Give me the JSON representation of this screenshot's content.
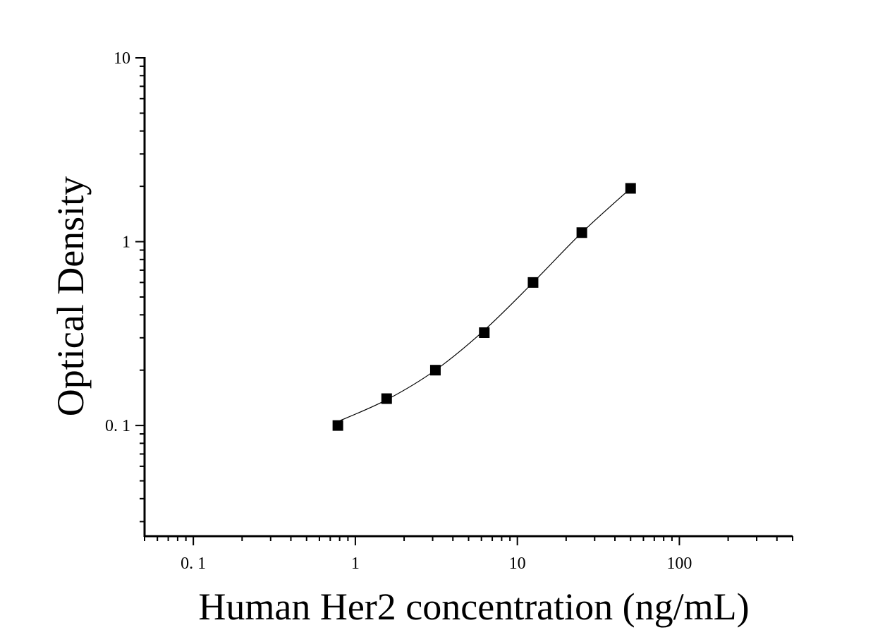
{
  "chart_data": {
    "type": "scatter",
    "title": "",
    "xlabel": "Human Her2 concentration (ng/mL)",
    "ylabel": "Optical Density",
    "x_scale": "log",
    "y_scale": "log",
    "xlim": [
      0.05,
      500
    ],
    "ylim": [
      0.025,
      10
    ],
    "x_ticks": [
      {
        "value": 0.1,
        "label": "0. 1"
      },
      {
        "value": 1,
        "label": "1"
      },
      {
        "value": 10,
        "label": "10"
      },
      {
        "value": 100,
        "label": "100"
      }
    ],
    "y_ticks": [
      {
        "value": 0.1,
        "label": "0. 1"
      },
      {
        "value": 1,
        "label": "1"
      },
      {
        "value": 10,
        "label": "10"
      }
    ],
    "grid": false,
    "legend": "none",
    "series": [
      {
        "marker": "square",
        "color": "#000000",
        "x": [
          0.78,
          1.56,
          3.12,
          6.25,
          12.5,
          25,
          50
        ],
        "y": [
          0.1,
          0.14,
          0.2,
          0.32,
          0.6,
          1.12,
          1.95
        ]
      }
    ],
    "fit_curve": {
      "type": "line",
      "color": "#000000",
      "x": [
        0.78,
        1.56,
        3.12,
        6.25,
        12.5,
        25,
        50
      ],
      "y": [
        0.105,
        0.138,
        0.2,
        0.33,
        0.6,
        1.12,
        1.95
      ]
    }
  }
}
